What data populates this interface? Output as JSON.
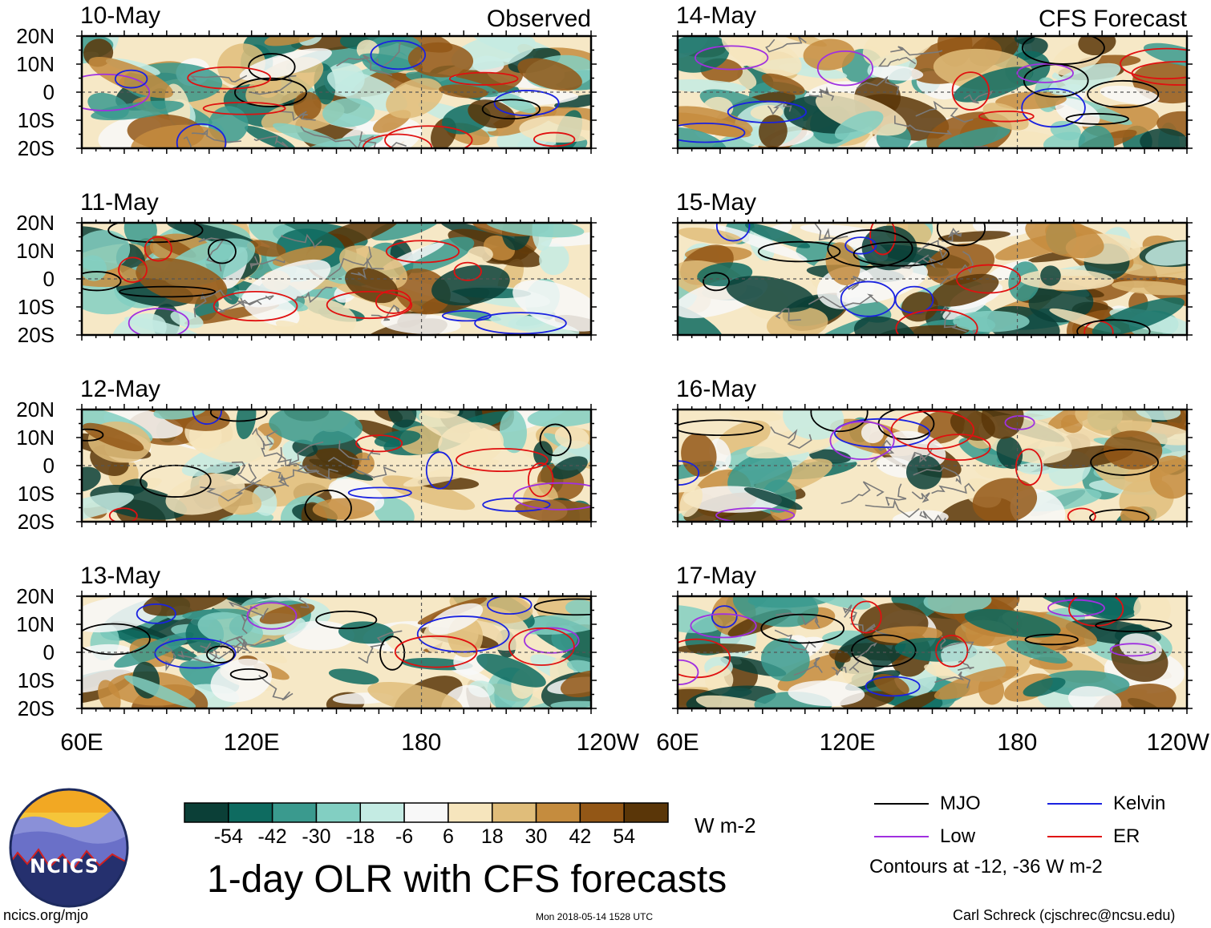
{
  "panels": [
    {
      "date": "10-May",
      "column": "observed",
      "header_right": "Observed",
      "show_lon_labels": false
    },
    {
      "date": "11-May",
      "column": "observed",
      "header_right": "",
      "show_lon_labels": false
    },
    {
      "date": "12-May",
      "column": "observed",
      "header_right": "",
      "show_lon_labels": false
    },
    {
      "date": "13-May",
      "column": "observed",
      "header_right": "",
      "show_lon_labels": true
    },
    {
      "date": "14-May",
      "column": "forecast",
      "header_right": "CFS Forecast",
      "show_lon_labels": false
    },
    {
      "date": "15-May",
      "column": "forecast",
      "header_right": "",
      "show_lon_labels": false
    },
    {
      "date": "16-May",
      "column": "forecast",
      "header_right": "",
      "show_lon_labels": false
    },
    {
      "date": "17-May",
      "column": "forecast",
      "header_right": "",
      "show_lon_labels": true
    }
  ],
  "lat_labels": [
    "20N",
    "10N",
    "0",
    "10S",
    "20S"
  ],
  "lon_labels": [
    "60E",
    "120E",
    "180",
    "120W"
  ],
  "colorbar": {
    "colors": [
      "#0b3f37",
      "#0e6b60",
      "#3a9a8e",
      "#82cfc2",
      "#c4ebe3",
      "#f8f8f8",
      "#f6e5bd",
      "#e0bd7a",
      "#c58c3e",
      "#935716",
      "#5a3608"
    ],
    "labels": [
      "-54",
      "-42",
      "-30",
      "-18",
      "-6",
      "6",
      "18",
      "30",
      "42",
      "54"
    ],
    "units": "W m-2"
  },
  "title": "1-day OLR with CFS forecasts",
  "legend": {
    "items": [
      {
        "label": "MJO",
        "color": "#000000"
      },
      {
        "label": "Kelvin",
        "color": "#1a22e0"
      },
      {
        "label": "Low",
        "color": "#a030e0"
      },
      {
        "label": "ER",
        "color": "#e01010"
      }
    ],
    "note": "Contours at -12, -36 W m-2"
  },
  "logo_text": "NCICS",
  "footer": {
    "left": "ncics.org/mjo",
    "center": "Mon 2018-05-14 1528 UTC",
    "right": "Carl Schreck (cjschrec@ncsu.edu)"
  }
}
